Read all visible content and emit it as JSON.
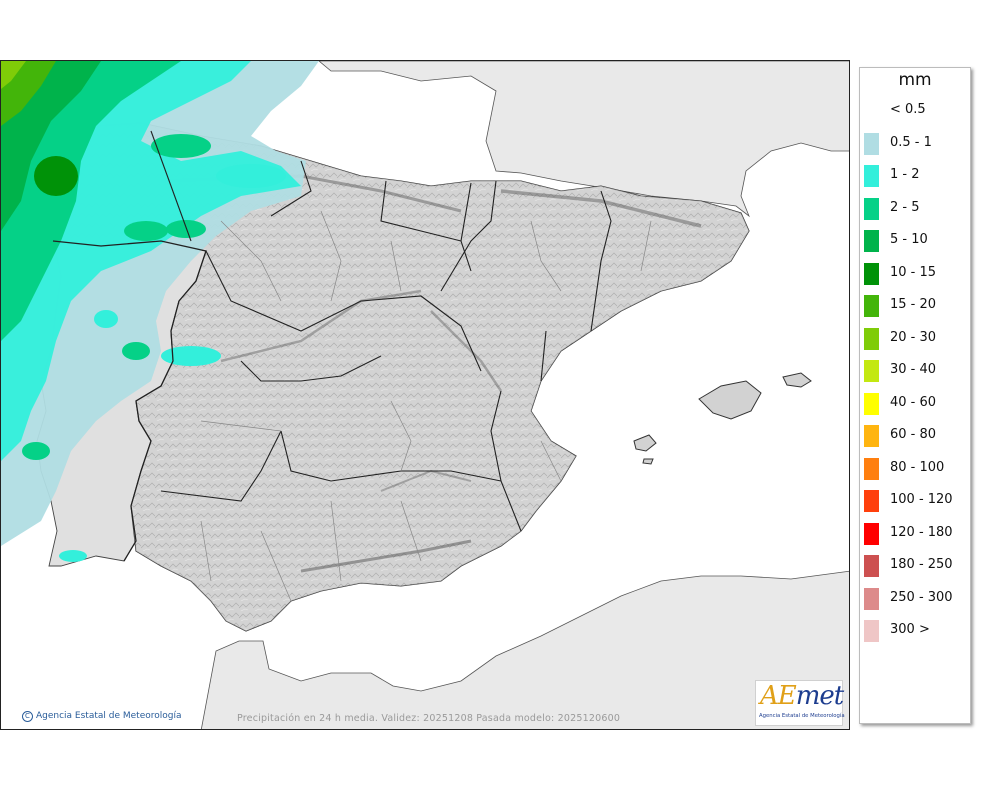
{
  "legend": {
    "unit": "mm",
    "items": [
      {
        "label": "< 0.5",
        "color": null
      },
      {
        "label": "0.5 - 1",
        "color": "#b0dde3"
      },
      {
        "label": "1 - 2",
        "color": "#33efdb"
      },
      {
        "label": "2 - 5",
        "color": "#05d187"
      },
      {
        "label": "5 - 10",
        "color": "#00b34b"
      },
      {
        "label": "10 - 15",
        "color": "#009208"
      },
      {
        "label": "15 - 20",
        "color": "#43b50a"
      },
      {
        "label": "20 - 30",
        "color": "#7fcc08"
      },
      {
        "label": "30 - 40",
        "color": "#c3e811"
      },
      {
        "label": "40 - 60",
        "color": "#ffff00"
      },
      {
        "label": "60 - 80",
        "color": "#ffb510"
      },
      {
        "label": "80 - 100",
        "color": "#ff7f0f"
      },
      {
        "label": "100 - 120",
        "color": "#ff3f0c"
      },
      {
        "label": "120 - 180",
        "color": "#ff0000"
      },
      {
        "label": "180 - 250",
        "color": "#cd5050"
      },
      {
        "label": "250 - 300",
        "color": "#dd8a8a"
      },
      {
        "label": "300 >",
        "color": "#efc6c6"
      }
    ]
  },
  "footer": {
    "copyright": "Agencia Estatal de Meteorología",
    "note": "Precipitación en 24 h media. Validez: 20251208 Pasada modelo: 2025120600"
  },
  "logo": {
    "text_a": "AE",
    "text_b": "met",
    "subtitle": "Agencia Estatal de Meteorología"
  },
  "colors": {
    "sea": "#ffffff",
    "land_other": "#e9e9e9",
    "land_spain": "#d2d2d2",
    "borders": "#333333"
  }
}
